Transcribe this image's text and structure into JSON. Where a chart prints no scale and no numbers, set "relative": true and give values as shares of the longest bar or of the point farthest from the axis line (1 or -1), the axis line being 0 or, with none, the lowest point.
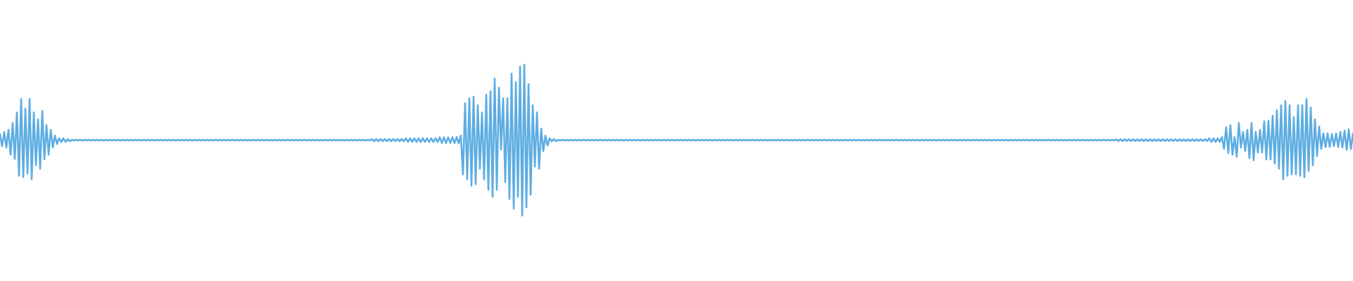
{
  "chart_data": {
    "type": "line",
    "relative": true,
    "tick_labels": false,
    "color": "#5dade2",
    "categories": [
      null,
      null,
      null,
      null,
      null,
      null,
      null,
      null,
      null,
      null,
      null,
      null,
      null,
      null,
      null,
      null,
      null,
      null,
      null,
      null,
      null,
      null,
      null,
      null,
      null,
      null,
      null,
      null,
      null,
      null,
      null,
      null,
      null,
      null,
      null,
      null,
      null,
      null,
      null,
      null,
      null,
      null,
      null,
      null,
      null,
      null,
      null,
      null,
      null,
      null,
      null,
      null,
      null,
      null,
      null,
      null,
      null,
      null,
      null,
      null,
      null,
      null,
      null,
      null,
      null,
      null,
      null,
      null,
      null,
      null,
      null,
      null,
      null,
      null,
      null,
      null,
      null,
      null,
      null,
      null,
      null,
      null,
      null,
      null,
      null,
      null,
      null,
      null,
      null,
      null,
      null,
      null,
      null,
      null,
      null,
      null,
      null,
      null,
      null,
      null,
      null,
      null,
      null,
      null,
      null,
      null,
      null,
      null,
      null,
      null,
      null,
      null,
      null,
      null,
      null,
      null,
      null,
      null,
      null,
      null,
      null,
      null,
      null,
      null,
      null,
      null,
      null,
      null,
      null,
      null,
      null,
      null,
      null,
      null,
      null,
      null,
      null,
      null,
      null,
      null,
      null,
      null,
      null,
      null,
      null,
      null,
      null,
      null,
      null,
      null,
      null,
      null,
      null,
      null,
      null,
      null,
      null,
      null,
      null,
      null,
      null,
      null,
      null,
      null,
      null,
      null,
      null,
      null,
      null,
      null,
      null,
      null,
      null,
      null,
      null,
      null,
      null,
      null,
      null,
      null,
      null,
      null,
      null,
      null,
      null,
      null,
      null,
      null,
      null,
      null,
      null,
      null,
      null,
      null,
      null,
      null,
      null,
      null,
      null,
      null,
      null,
      null,
      null,
      null,
      null,
      null,
      null,
      null,
      null,
      null,
      null,
      null,
      null,
      null,
      null,
      null,
      null,
      null,
      null,
      null,
      null,
      null,
      null,
      null,
      null,
      null,
      null,
      null,
      null,
      null,
      null,
      null,
      null,
      null,
      null,
      null,
      null,
      null,
      null,
      null,
      null,
      null,
      null,
      null,
      null,
      null,
      null,
      null,
      null,
      null,
      null,
      null,
      null,
      null,
      null,
      null,
      null,
      null,
      null,
      null,
      null,
      null,
      null,
      null,
      null,
      null,
      null,
      null,
      null,
      null,
      null,
      null,
      null,
      null,
      null,
      null,
      null,
      null,
      null,
      null,
      null,
      null,
      null,
      null,
      null,
      null,
      null,
      null,
      null,
      null,
      null,
      null,
      null,
      null,
      null,
      null,
      null,
      null,
      null,
      null,
      null,
      null,
      null,
      null,
      null,
      null,
      null,
      null,
      null,
      null,
      null,
      null,
      null,
      null,
      null,
      null,
      null,
      null,
      null,
      null,
      null,
      null,
      null,
      null,
      null,
      null,
      null,
      null,
      null,
      null,
      null,
      null,
      null,
      null,
      null,
      null,
      null,
      null,
      null,
      null,
      null,
      null,
      null,
      null,
      null,
      null,
      null,
      null,
      null,
      null,
      null,
      null,
      null,
      null,
      null,
      null,
      null,
      null,
      null,
      null,
      null,
      null,
      null,
      null,
      null,
      null,
      null,
      null,
      null,
      null,
      null,
      null,
      null,
      null,
      null,
      null,
      null,
      null,
      null,
      null,
      null,
      null,
      null,
      null,
      null,
      null,
      null,
      null,
      null,
      null,
      null,
      null,
      null,
      null,
      null,
      null,
      null,
      null,
      null,
      null,
      null,
      null,
      null,
      null,
      null,
      null,
      null,
      null,
      null,
      null,
      null,
      null,
      null,
      null,
      null,
      null,
      null,
      null,
      null,
      null,
      null,
      null,
      null,
      null,
      null,
      null,
      null,
      null,
      null,
      null,
      null,
      null,
      null,
      null,
      null,
      null,
      null,
      null,
      null,
      null,
      null,
      null,
      null,
      null,
      null,
      null,
      null,
      null,
      null,
      null,
      null,
      null,
      null,
      null,
      null,
      null,
      null,
      null,
      null,
      null,
      null,
      null,
      null,
      null,
      null,
      null,
      null,
      null,
      null,
      null,
      null,
      null,
      null,
      null,
      null,
      null,
      null,
      null,
      null,
      null,
      null,
      null,
      null,
      null,
      null,
      null,
      null,
      null,
      null,
      null,
      null,
      null,
      null,
      null,
      null,
      null,
      null,
      null,
      null,
      null,
      null,
      null,
      null,
      null,
      null,
      null,
      null,
      null,
      null,
      null,
      null,
      null,
      null,
      null,
      null,
      null,
      null,
      null,
      null,
      null,
      null,
      null,
      null,
      null,
      null,
      null,
      null,
      null,
      null,
      null,
      null,
      null,
      null,
      null,
      null,
      null,
      null,
      null,
      null,
      null,
      null,
      null,
      null,
      null,
      null,
      null,
      null,
      null,
      null,
      null,
      null,
      null,
      null,
      null,
      null,
      null,
      null,
      null,
      null,
      null,
      null,
      null,
      null,
      null,
      null,
      null,
      null,
      null,
      null,
      null,
      null,
      null,
      null,
      null,
      null,
      null,
      null,
      null,
      null,
      null,
      null,
      null,
      null,
      null,
      null,
      null,
      null,
      null,
      null,
      null,
      null,
      null,
      null,
      null,
      null,
      null,
      null,
      null,
      null,
      null,
      null,
      null,
      null,
      null,
      null,
      null,
      null,
      null,
      null,
      null,
      null,
      null,
      null,
      null,
      null,
      null,
      null,
      null,
      null,
      null,
      null,
      null,
      null,
      null,
      null,
      null,
      null,
      null,
      null,
      null,
      null,
      null,
      null,
      null,
      null,
      null,
      null,
      null,
      null,
      null,
      null
    ],
    "values": [
      0.54,
      0.46,
      0.554,
      0.451,
      0.568,
      0.404,
      0.614,
      0.376,
      0.684,
      0.264,
      0.773,
      0.255,
      0.708,
      0.278,
      0.773,
      0.241,
      0.684,
      0.334,
      0.638,
      0.311,
      0.694,
      0.372,
      0.6,
      0.404,
      0.568,
      0.451,
      0.53,
      0.474,
      0.512,
      0.488,
      0.512,
      0.488,
      0.507,
      0.493,
      0.502,
      0.498,
      0.502,
      0.498,
      0.502,
      0.498,
      0.502,
      0.498,
      0.502,
      0.498,
      0.502,
      0.498,
      0.502,
      0.498,
      0.502,
      0.498,
      0.502,
      0.498,
      0.502,
      0.498,
      0.502,
      0.498,
      0.502,
      0.498,
      0.502,
      0.498,
      0.502,
      0.498,
      0.502,
      0.498,
      0.502,
      0.498,
      0.502,
      0.498,
      0.502,
      0.498,
      0.502,
      0.498,
      0.502,
      0.498,
      0.502,
      0.498,
      0.502,
      0.498,
      0.502,
      0.498,
      0.502,
      0.498,
      0.502,
      0.498,
      0.502,
      0.498,
      0.502,
      0.498,
      0.502,
      0.498,
      0.502,
      0.498,
      0.502,
      0.498,
      0.502,
      0.498,
      0.502,
      0.498,
      0.502,
      0.498,
      0.502,
      0.498,
      0.502,
      0.498,
      0.502,
      0.498,
      0.502,
      0.498,
      0.502,
      0.498,
      0.502,
      0.498,
      0.502,
      0.498,
      0.502,
      0.498,
      0.502,
      0.498,
      0.502,
      0.498,
      0.502,
      0.498,
      0.502,
      0.498,
      0.502,
      0.498,
      0.502,
      0.498,
      0.502,
      0.498,
      0.502,
      0.498,
      0.502,
      0.498,
      0.502,
      0.498,
      0.502,
      0.498,
      0.502,
      0.498,
      0.502,
      0.498,
      0.502,
      0.498,
      0.502,
      0.498,
      0.502,
      0.498,
      0.502,
      0.498,
      0.502,
      0.498,
      0.502,
      0.498,
      0.502,
      0.498,
      0.502,
      0.498,
      0.502,
      0.498,
      0.502,
      0.498,
      0.502,
      0.498,
      0.502,
      0.498,
      0.502,
      0.498,
      0.502,
      0.498,
      0.502,
      0.498,
      0.502,
      0.498,
      0.502,
      0.498,
      0.507,
      0.493,
      0.507,
      0.493,
      0.507,
      0.493,
      0.507,
      0.493,
      0.507,
      0.493,
      0.507,
      0.493,
      0.507,
      0.493,
      0.507,
      0.493,
      0.512,
      0.488,
      0.512,
      0.488,
      0.512,
      0.488,
      0.512,
      0.488,
      0.512,
      0.488,
      0.512,
      0.488,
      0.512,
      0.488,
      0.512,
      0.488,
      0.519,
      0.481,
      0.519,
      0.481,
      0.519,
      0.481,
      0.519,
      0.481,
      0.521,
      0.479,
      0.53,
      0.274,
      0.745,
      0.241,
      0.778,
      0.199,
      0.787,
      0.208,
      0.731,
      0.311,
      0.684,
      0.241,
      0.801,
      0.171,
      0.824,
      0.125,
      0.908,
      0.171,
      0.847,
      0.437,
      0.778,
      0.222,
      0.778,
      0.111,
      0.941,
      0.045,
      0.885,
      0.125,
      0.987,
      0,
      1,
      0.055,
      0.871,
      0.139,
      0.731,
      0.325,
      0.684,
      0.311,
      0.577,
      0.428,
      0.53,
      0.465,
      0.512,
      0.493,
      0.507,
      0.493,
      0.502,
      0.498,
      0.502,
      0.498,
      0.502,
      0.498,
      0.502,
      0.498,
      0.502,
      0.498,
      0.502,
      0.498,
      0.502,
      0.498,
      0.502,
      0.498,
      0.502,
      0.498,
      0.502,
      0.498,
      0.502,
      0.498,
      0.502,
      0.498,
      0.502,
      0.498,
      0.502,
      0.498,
      0.502,
      0.498,
      0.502,
      0.498,
      0.502,
      0.498,
      0.502,
      0.498,
      0.502,
      0.498,
      0.502,
      0.498,
      0.502,
      0.498,
      0.502,
      0.498,
      0.502,
      0.498,
      0.502,
      0.498,
      0.502,
      0.498,
      0.502,
      0.498,
      0.502,
      0.498,
      0.502,
      0.498,
      0.502,
      0.498,
      0.502,
      0.498,
      0.502,
      0.498,
      0.502,
      0.498,
      0.502,
      0.498,
      0.502,
      0.498,
      0.502,
      0.498,
      0.502,
      0.498,
      0.502,
      0.498,
      0.502,
      0.498,
      0.502,
      0.498,
      0.502,
      0.498,
      0.502,
      0.498,
      0.502,
      0.498,
      0.502,
      0.498,
      0.502,
      0.498,
      0.502,
      0.498,
      0.502,
      0.498,
      0.502,
      0.498,
      0.502,
      0.498,
      0.502,
      0.498,
      0.502,
      0.498,
      0.502,
      0.498,
      0.502,
      0.498,
      0.502,
      0.498,
      0.502,
      0.498,
      0.502,
      0.498,
      0.502,
      0.498,
      0.502,
      0.498,
      0.502,
      0.498,
      0.502,
      0.498,
      0.502,
      0.498,
      0.502,
      0.498,
      0.502,
      0.498,
      0.502,
      0.498,
      0.502,
      0.498,
      0.502,
      0.498,
      0.502,
      0.498,
      0.502,
      0.498,
      0.502,
      0.498,
      0.502,
      0.498,
      0.502,
      0.498,
      0.502,
      0.498,
      0.502,
      0.498,
      0.502,
      0.498,
      0.502,
      0.498,
      0.502,
      0.498,
      0.502,
      0.498,
      0.502,
      0.498,
      0.502,
      0.498,
      0.502,
      0.498,
      0.502,
      0.498,
      0.502,
      0.498,
      0.502,
      0.498,
      0.502,
      0.498,
      0.502,
      0.498,
      0.502,
      0.498,
      0.502,
      0.498,
      0.502,
      0.498,
      0.502,
      0.498,
      0.502,
      0.498,
      0.502,
      0.498,
      0.502,
      0.498,
      0.502,
      0.498,
      0.502,
      0.498,
      0.502,
      0.498,
      0.502,
      0.498,
      0.502,
      0.498,
      0.502,
      0.498,
      0.502,
      0.498,
      0.502,
      0.498,
      0.502,
      0.498,
      0.502,
      0.498,
      0.502,
      0.498,
      0.502,
      0.498,
      0.502,
      0.498,
      0.502,
      0.498,
      0.502,
      0.498,
      0.502,
      0.498,
      0.502,
      0.498,
      0.502,
      0.498,
      0.502,
      0.498,
      0.502,
      0.498,
      0.502,
      0.498,
      0.502,
      0.498,
      0.502,
      0.498,
      0.502,
      0.498,
      0.502,
      0.498,
      0.502,
      0.498,
      0.502,
      0.498,
      0.502,
      0.498,
      0.502,
      0.498,
      0.502,
      0.498,
      0.502,
      0.498,
      0.502,
      0.498,
      0.502,
      0.498,
      0.502,
      0.498,
      0.502,
      0.498,
      0.502,
      0.498,
      0.502,
      0.498,
      0.502,
      0.498,
      0.502,
      0.498,
      0.502,
      0.498,
      0.502,
      0.498,
      0.505,
      0.495,
      0.505,
      0.495,
      0.505,
      0.495,
      0.505,
      0.495,
      0.505,
      0.495,
      0.505,
      0.495,
      0.505,
      0.495,
      0.505,
      0.495,
      0.505,
      0.495,
      0.505,
      0.495,
      0.505,
      0.495,
      0.505,
      0.495,
      0.505,
      0.495,
      0.505,
      0.495,
      0.505,
      0.495,
      0.505,
      0.495,
      0.505,
      0.495,
      0.505,
      0.495,
      0.505,
      0.495,
      0.505,
      0.495,
      0.505,
      0.495,
      0.505,
      0.495,
      0.512,
      0.488,
      0.512,
      0.488,
      0.512,
      0.488,
      0.521,
      0.442,
      0.586,
      0.414,
      0.6,
      0.404,
      0.521,
      0.39,
      0.614,
      0.451,
      0.554,
      0.428,
      0.568,
      0.381,
      0.614,
      0.367,
      0.554,
      0.418,
      0.568,
      0.418,
      0.624,
      0.372,
      0.628,
      0.372,
      0.661,
      0.344,
      0.698,
      0.311,
      0.731,
      0.241,
      0.759,
      0.264,
      0.731,
      0.274,
      0.652,
      0.274,
      0.731,
      0.264,
      0.731,
      0.255,
      0.773,
      0.297,
      0.716,
      0.334,
      0.638,
      0.395,
      0.591,
      0.442,
      0.544,
      0.455,
      0.544,
      0.455,
      0.54,
      0.46,
      0.544,
      0.455,
      0.554,
      0.451,
      0.563,
      0.437,
      0.572,
      0.442,
      0.544
    ]
  }
}
